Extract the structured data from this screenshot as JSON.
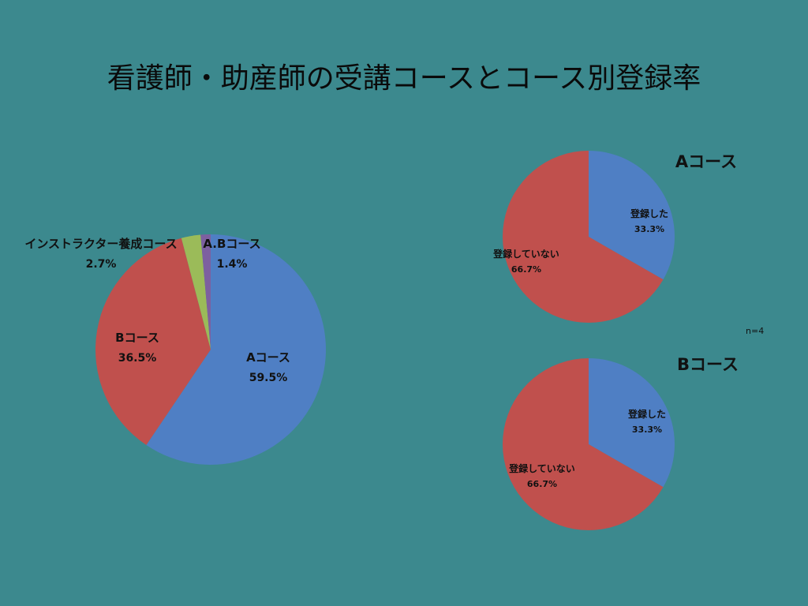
{
  "title": "看護師・助産師の受講コースとコース別登録率",
  "colors": {
    "background": "#3c898e",
    "blue": "#4f7fc4",
    "red": "#c0504d",
    "green": "#9bbb59",
    "purple": "#7d60a0"
  },
  "chart_data": [
    {
      "type": "pie",
      "title": "",
      "slices": [
        {
          "name": "Aコース",
          "value": 59.5,
          "label": "59.5%",
          "color": "#4f7fc4"
        },
        {
          "name": "Bコース",
          "value": 36.5,
          "label": "36.5%",
          "color": "#c0504d"
        },
        {
          "name": "インストラクター養成コース",
          "value": 2.7,
          "label": "2.7%",
          "color": "#9bbb59"
        },
        {
          "name": "A.Bコース",
          "value": 1.4,
          "label": "1.4%",
          "color": "#7d60a0"
        }
      ]
    },
    {
      "type": "pie",
      "title": "Aコース",
      "note": "n=4",
      "slices": [
        {
          "name": "登録した",
          "value": 33.3,
          "label": "33.3%",
          "color": "#4f7fc4"
        },
        {
          "name": "登録していない",
          "value": 66.7,
          "label": "66.7%",
          "color": "#c0504d"
        }
      ]
    },
    {
      "type": "pie",
      "title": "Bコース",
      "slices": [
        {
          "name": "登録した",
          "value": 33.3,
          "label": "33.3%",
          "color": "#4f7fc4"
        },
        {
          "name": "登録していない",
          "value": 66.7,
          "label": "66.7%",
          "color": "#c0504d"
        }
      ]
    }
  ]
}
